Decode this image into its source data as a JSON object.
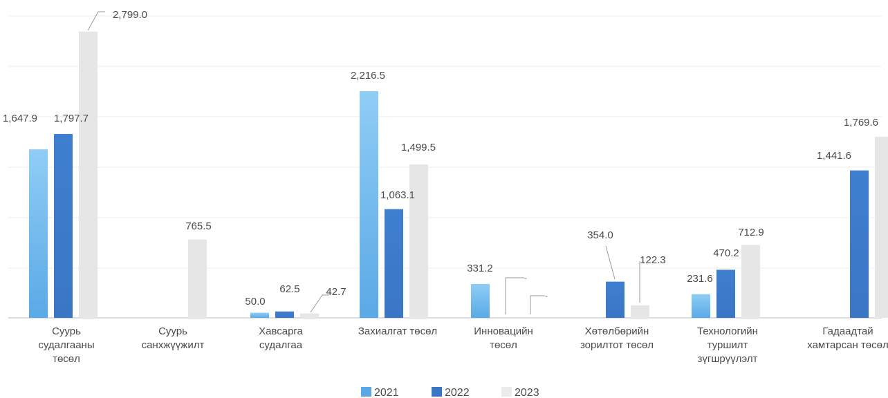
{
  "chart_data": {
    "type": "bar",
    "title": "",
    "xlabel": "",
    "ylabel": "",
    "ylim": [
      0,
      3000
    ],
    "grid": true,
    "legend_position": "bottom-center",
    "categories": [
      [
        "Суурь",
        "судалгааны",
        "төсөл"
      ],
      [
        "Суурь",
        "санхжүүжилт"
      ],
      [
        "Хавсарга",
        "судалгаа"
      ],
      [
        "Захиалгат төсөл"
      ],
      [
        "Инновацийн",
        "төсөл"
      ],
      [
        "Хөтөлбөрийн",
        "зорилтот төсөл"
      ],
      [
        "Технологийн",
        "туршилт",
        "зүгшрүүлэлт"
      ],
      [
        "Гадаадтай",
        "хамтарсан төсөл"
      ]
    ],
    "series": [
      {
        "name": "2021",
        "color": "#5aa9e6",
        "values": [
          1647.9,
          null,
          50.0,
          2216.5,
          331.2,
          null,
          231.6,
          null
        ],
        "labels": [
          "1,647.9",
          "",
          "50.0",
          "2,216.5",
          "331.2",
          "",
          "231.6",
          ""
        ]
      },
      {
        "name": "2022",
        "color": "#3a76c4",
        "values": [
          1797.7,
          null,
          62.5,
          1063.1,
          null,
          354.0,
          470.2,
          1441.6
        ],
        "labels": [
          "1,797.7",
          "",
          "62.5",
          "1,063.1",
          "-",
          "354.0",
          "470.2",
          "1,441.6"
        ]
      },
      {
        "name": "2023",
        "color": "#e6e6e6",
        "values": [
          2799.0,
          765.5,
          42.7,
          1499.5,
          null,
          122.3,
          712.9,
          1769.6
        ],
        "labels": [
          "2,799.0",
          "765.5",
          "42.7",
          "1,499.5",
          "-",
          "122.3",
          "712.9",
          "1,769.6"
        ]
      }
    ]
  }
}
